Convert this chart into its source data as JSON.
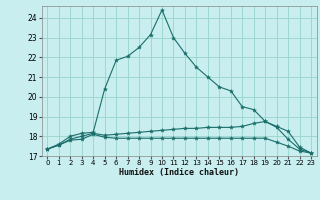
{
  "title": "",
  "xlabel": "Humidex (Indice chaleur)",
  "ylabel": "",
  "background_color": "#c8eef0",
  "grid_color": "#98d4cc",
  "line_color": "#1a6e6a",
  "xlim": [
    -0.5,
    23.5
  ],
  "ylim": [
    17.0,
    24.6
  ],
  "yticks": [
    17,
    18,
    19,
    20,
    21,
    22,
    23,
    24
  ],
  "xticks": [
    0,
    1,
    2,
    3,
    4,
    5,
    6,
    7,
    8,
    9,
    10,
    11,
    12,
    13,
    14,
    15,
    16,
    17,
    18,
    19,
    20,
    21,
    22,
    23
  ],
  "series": [
    {
      "x": [
        0,
        1,
        2,
        3,
        4,
        5,
        6,
        7,
        8,
        9,
        10,
        11,
        12,
        13,
        14,
        15,
        16,
        17,
        18,
        19,
        20,
        21,
        22,
        23
      ],
      "y": [
        17.35,
        17.55,
        17.8,
        17.85,
        18.1,
        17.95,
        17.9,
        17.9,
        17.9,
        17.9,
        17.9,
        17.9,
        17.9,
        17.9,
        17.9,
        17.9,
        17.9,
        17.9,
        17.9,
        17.9,
        17.7,
        17.5,
        17.25,
        17.15
      ]
    },
    {
      "x": [
        0,
        1,
        2,
        3,
        4,
        5,
        6,
        7,
        8,
        9,
        10,
        11,
        12,
        13,
        14,
        15,
        16,
        17,
        18,
        19,
        20,
        21,
        22,
        23
      ],
      "y": [
        17.35,
        17.55,
        17.85,
        18.0,
        18.15,
        18.05,
        18.1,
        18.15,
        18.2,
        18.25,
        18.3,
        18.35,
        18.4,
        18.4,
        18.45,
        18.45,
        18.45,
        18.5,
        18.65,
        18.75,
        18.5,
        18.25,
        17.45,
        17.15
      ]
    },
    {
      "x": [
        0,
        1,
        2,
        3,
        4,
        5,
        6,
        7,
        8,
        9,
        10,
        11,
        12,
        13,
        14,
        15,
        16,
        17,
        18,
        19,
        20,
        21,
        22,
        23
      ],
      "y": [
        17.35,
        17.6,
        18.0,
        18.15,
        18.2,
        20.4,
        21.85,
        22.05,
        22.5,
        23.15,
        24.4,
        23.0,
        22.2,
        21.5,
        21.0,
        20.5,
        20.3,
        19.5,
        19.35,
        18.75,
        18.45,
        17.85,
        17.35,
        17.15
      ]
    }
  ]
}
